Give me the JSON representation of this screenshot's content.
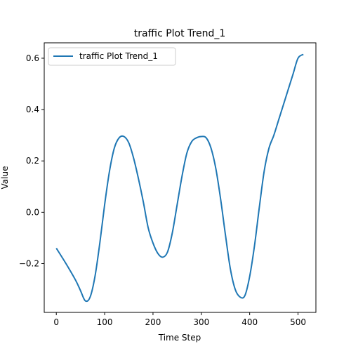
{
  "chart_data": {
    "type": "line",
    "title": "traffic Plot Trend_1",
    "xlabel": "Time Step",
    "ylabel": "Value",
    "xlim": [
      -25,
      537
    ],
    "ylim": [
      -0.39,
      0.66
    ],
    "xticks": [
      0,
      100,
      200,
      300,
      400,
      500
    ],
    "yticks": [
      -0.2,
      0.0,
      0.2,
      0.4,
      0.6
    ],
    "xtick_labels": [
      "0",
      "100",
      "200",
      "300",
      "400",
      "500"
    ],
    "ytick_labels": [
      "−0.2",
      "0.0",
      "0.2",
      "0.4",
      "0.6"
    ],
    "grid": false,
    "legend_position": "upper left",
    "series": [
      {
        "name": "traffic Plot Trend_1",
        "color": "#1f77b4",
        "x": [
          0,
          20,
          40,
          50,
          60,
          70,
          80,
          90,
          100,
          110,
          120,
          130,
          140,
          150,
          160,
          170,
          180,
          190,
          200,
          210,
          220,
          230,
          240,
          250,
          260,
          270,
          280,
          290,
          300,
          310,
          320,
          330,
          340,
          350,
          360,
          370,
          380,
          390,
          400,
          410,
          420,
          430,
          440,
          450,
          460,
          470,
          480,
          490,
          500,
          511
        ],
        "y": [
          -0.14,
          -0.2,
          -0.265,
          -0.305,
          -0.345,
          -0.33,
          -0.25,
          -0.12,
          0.03,
          0.16,
          0.25,
          0.29,
          0.295,
          0.27,
          0.21,
          0.13,
          0.04,
          -0.06,
          -0.12,
          -0.16,
          -0.175,
          -0.155,
          -0.08,
          0.03,
          0.14,
          0.23,
          0.275,
          0.29,
          0.295,
          0.29,
          0.25,
          0.17,
          0.05,
          -0.09,
          -0.22,
          -0.3,
          -0.33,
          -0.325,
          -0.25,
          -0.13,
          0.02,
          0.16,
          0.25,
          0.3,
          0.36,
          0.42,
          0.48,
          0.54,
          0.6,
          0.615
        ]
      }
    ]
  },
  "colors": {
    "line": "#1f77b4",
    "axes": "#000000",
    "background": "#ffffff"
  }
}
